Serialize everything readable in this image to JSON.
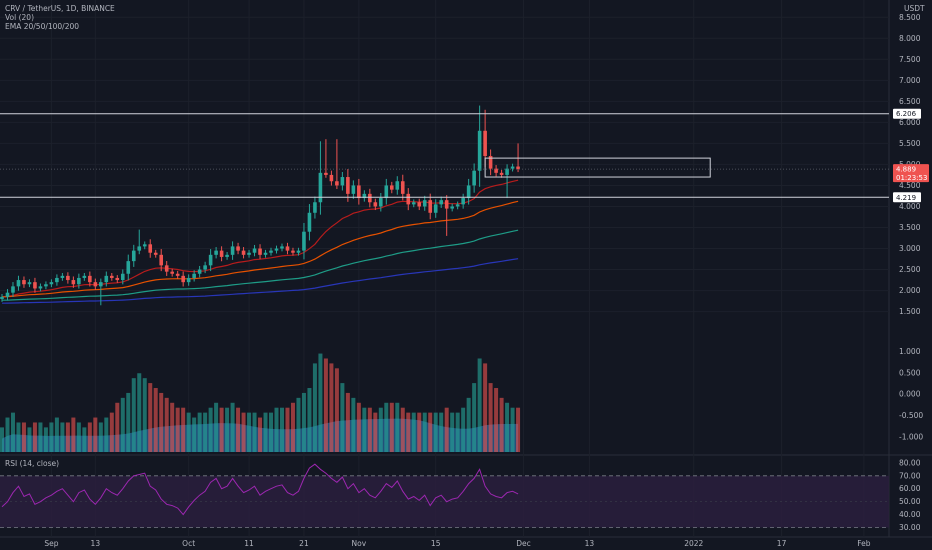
{
  "header": {
    "symbol_line": "CRV / TetherUS, 1D, BINANCE",
    "vol_label": "Vol (20)",
    "ema_label": "EMA 20/50/100/200",
    "rsi_label": "RSI (14, close)",
    "currency": "USDT"
  },
  "price_badges": {
    "resistance": "6.206",
    "last_price": "4.889",
    "countdown": "01:23:53",
    "support": "4.219"
  },
  "colors": {
    "background": "#131722",
    "up": "#26a69a",
    "down": "#ef5350",
    "ema20": "#b71c1c",
    "ema50": "#e65100",
    "ema100": "#1e9c87",
    "ema200": "#2836b8",
    "rsi_line": "#9c27b0",
    "rsi_band": "#2a1f3d",
    "volume_area": "#2f7fc1"
  },
  "chart_data": {
    "type": "candlestick",
    "price_axis": {
      "ticks": [
        "8.500",
        "8.000",
        "7.500",
        "7.000",
        "6.500",
        "6.000",
        "5.500",
        "5.000",
        "4.500",
        "4.000",
        "3.500",
        "3.000",
        "2.500",
        "2.000",
        "1.500"
      ],
      "range": [
        1.3,
        8.72
      ]
    },
    "volume_axis": {
      "ticks": [
        "1.000",
        "0.500",
        "0.000",
        "-0.500",
        "-1.000"
      ],
      "range": [
        -1.35,
        1.15
      ]
    },
    "rsi_axis": {
      "ticks": [
        "80.00",
        "70.00",
        "60.00",
        "50.00",
        "40.00",
        "30.00"
      ],
      "range": [
        25,
        83
      ],
      "bands": [
        30,
        70
      ]
    },
    "time_axis": [
      {
        "label": "Sep",
        "idx": 9
      },
      {
        "label": "13",
        "idx": 17
      },
      {
        "label": "Oct",
        "idx": 34
      },
      {
        "label": "11",
        "idx": 45
      },
      {
        "label": "21",
        "idx": 55
      },
      {
        "label": "Nov",
        "idx": 65
      },
      {
        "label": "15",
        "idx": 79
      },
      {
        "label": "Dec",
        "idx": 95
      },
      {
        "label": "13",
        "idx": 107
      },
      {
        "label": "2022",
        "idx": 126
      },
      {
        "label": "17",
        "idx": 142
      },
      {
        "label": "Feb",
        "idx": 157
      }
    ],
    "horizontal_levels": [
      6.206,
      4.889,
      4.219
    ],
    "zone_box": {
      "from_idx": 88,
      "to_idx": 129,
      "top": 5.15,
      "bottom": 4.7
    },
    "closes": [
      1.85,
      1.95,
      2.1,
      2.25,
      2.15,
      2.2,
      2.05,
      2.1,
      2.15,
      2.2,
      2.3,
      2.35,
      2.25,
      2.15,
      2.3,
      2.35,
      2.2,
      2.1,
      2.2,
      2.35,
      2.3,
      2.25,
      2.4,
      2.7,
      2.95,
      3.05,
      3.1,
      2.9,
      2.85,
      2.6,
      2.45,
      2.4,
      2.35,
      2.2,
      2.3,
      2.4,
      2.5,
      2.6,
      2.85,
      2.95,
      2.8,
      2.85,
      3.05,
      2.95,
      2.85,
      2.9,
      3.0,
      2.85,
      2.9,
      2.95,
      3.0,
      3.05,
      2.95,
      2.9,
      2.95,
      3.4,
      3.85,
      4.1,
      4.8,
      4.75,
      4.6,
      4.5,
      4.7,
      4.3,
      4.5,
      4.2,
      4.3,
      4.1,
      4.0,
      4.2,
      4.5,
      4.4,
      4.6,
      4.3,
      4.05,
      4.1,
      4.0,
      4.15,
      3.85,
      4.05,
      4.15,
      3.95,
      4.0,
      4.05,
      4.2,
      4.5,
      4.85,
      5.8,
      5.2,
      4.9,
      4.8,
      4.75,
      4.9,
      4.95,
      4.889
    ],
    "rsi": [
      46,
      50,
      57,
      62,
      54,
      56,
      48,
      50,
      53,
      55,
      58,
      60,
      55,
      50,
      57,
      59,
      52,
      48,
      53,
      60,
      57,
      55,
      60,
      66,
      70,
      71,
      72,
      62,
      59,
      52,
      48,
      47,
      45,
      40,
      46,
      51,
      55,
      58,
      65,
      68,
      60,
      62,
      68,
      62,
      57,
      59,
      62,
      55,
      58,
      60,
      62,
      63,
      57,
      55,
      58,
      68,
      76,
      79,
      75,
      72,
      68,
      65,
      69,
      60,
      64,
      57,
      60,
      55,
      53,
      58,
      64,
      61,
      66,
      58,
      52,
      54,
      51,
      55,
      47,
      53,
      55,
      50,
      52,
      53,
      58,
      64,
      68,
      75,
      62,
      56,
      54,
      53,
      57,
      58,
      56
    ],
    "volume": [
      0.25,
      0.35,
      0.4,
      0.3,
      0.3,
      0.25,
      0.3,
      0.3,
      0.25,
      0.3,
      0.35,
      0.3,
      0.3,
      0.35,
      0.3,
      0.25,
      0.3,
      0.35,
      0.3,
      0.35,
      0.4,
      0.5,
      0.55,
      0.6,
      0.75,
      0.8,
      0.75,
      0.7,
      0.65,
      0.6,
      0.55,
      0.5,
      0.45,
      0.45,
      0.4,
      0.35,
      0.4,
      0.4,
      0.45,
      0.5,
      0.45,
      0.45,
      0.5,
      0.45,
      0.4,
      0.4,
      0.4,
      0.35,
      0.4,
      0.4,
      0.45,
      0.45,
      0.45,
      0.5,
      0.55,
      0.6,
      0.65,
      0.9,
      1.0,
      0.95,
      0.9,
      0.85,
      0.7,
      0.6,
      0.55,
      0.5,
      0.45,
      0.45,
      0.4,
      0.45,
      0.5,
      0.5,
      0.5,
      0.45,
      0.4,
      0.4,
      0.4,
      0.4,
      0.4,
      0.4,
      0.4,
      0.45,
      0.4,
      0.4,
      0.45,
      0.55,
      0.7,
      0.95,
      0.9,
      0.7,
      0.65,
      0.55,
      0.5,
      0.45,
      0.45
    ]
  }
}
